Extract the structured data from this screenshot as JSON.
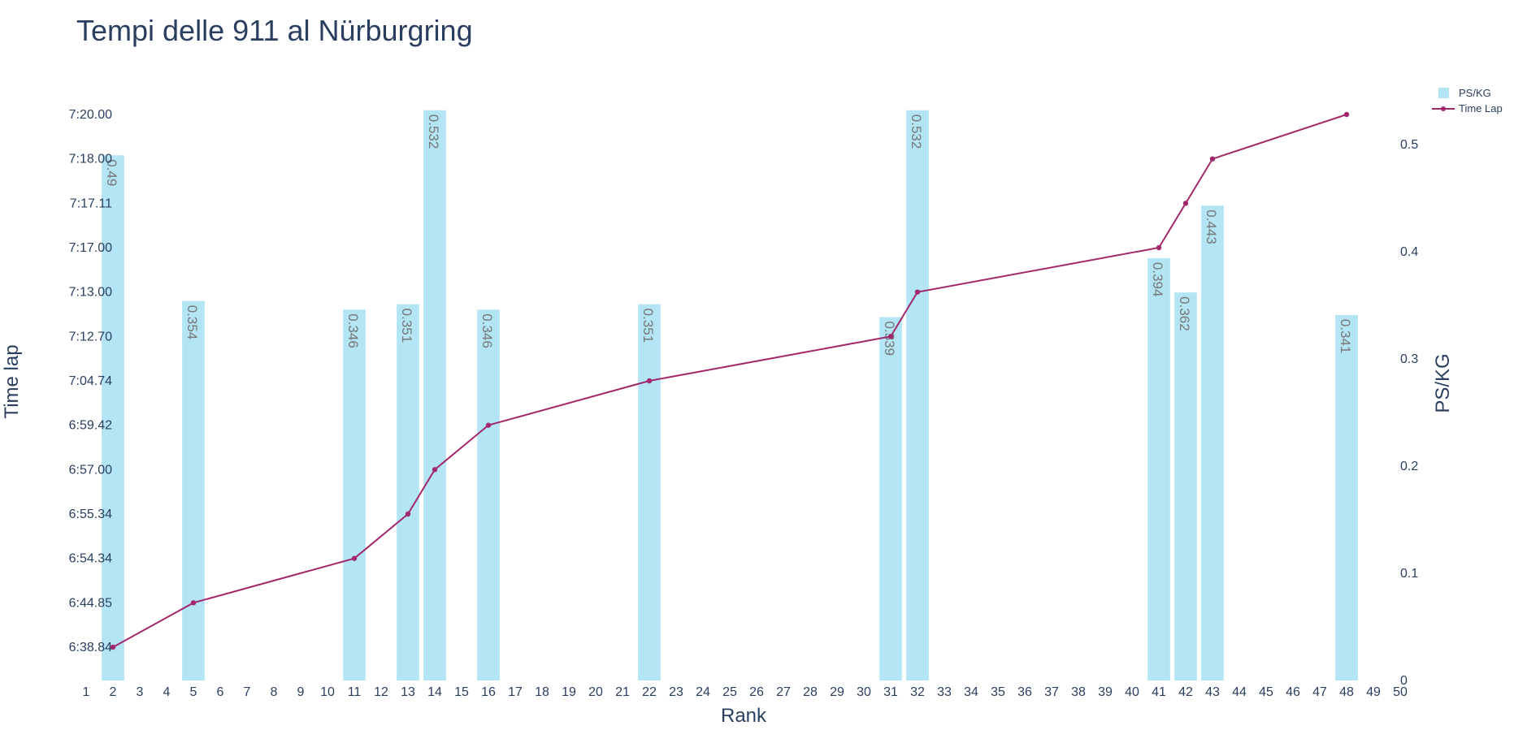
{
  "chart_data": {
    "type": "bar",
    "title": "Tempi delle 911 al Nürburgring",
    "xlabel": "Rank",
    "ylabel": "Time lap",
    "y2label": "PS/KG",
    "x_ticks": [
      1,
      2,
      3,
      4,
      5,
      6,
      7,
      8,
      9,
      10,
      11,
      12,
      13,
      14,
      15,
      16,
      17,
      18,
      19,
      20,
      21,
      22,
      23,
      24,
      25,
      26,
      27,
      28,
      29,
      30,
      31,
      32,
      33,
      34,
      35,
      36,
      37,
      38,
      39,
      40,
      41,
      42,
      43,
      44,
      45,
      46,
      47,
      48,
      49,
      50
    ],
    "xlim": [
      1,
      50
    ],
    "y_ticks": [
      "6:38.84",
      "6:44.85",
      "6:54.34",
      "6:55.34",
      "6:57.00",
      "6:59.42",
      "7:04.74",
      "7:12.70",
      "7:13.00",
      "7:17.00",
      "7:17.11",
      "7:18.00",
      "7:20.00"
    ],
    "y2_ticks": [
      0,
      0.1,
      0.2,
      0.3,
      0.4,
      0.5
    ],
    "y2lim": [
      0,
      0.5
    ],
    "series": [
      {
        "name": "PS/KG",
        "kind": "bar",
        "color": "#b3e5f4",
        "x": [
          2,
          5,
          11,
          13,
          14,
          16,
          22,
          31,
          32,
          41,
          42,
          43,
          48
        ],
        "values": [
          0.49,
          0.354,
          0.346,
          0.351,
          0.532,
          0.346,
          0.351,
          0.339,
          0.532,
          0.394,
          0.362,
          0.443,
          0.341
        ],
        "labels": [
          "0.49",
          "0.354",
          "0.346",
          "0.351",
          "0.532",
          "0.346",
          "0.351",
          "0.339",
          "0.532",
          "0.394",
          "0.362",
          "0.443",
          "0.341"
        ]
      },
      {
        "name": "Time Lap",
        "kind": "line",
        "color": "#a3286b",
        "x": [
          2,
          5,
          11,
          13,
          14,
          16,
          22,
          31,
          32,
          41,
          42,
          43,
          48
        ],
        "values": [
          "6:38.84",
          "6:44.85",
          "6:54.34",
          "6:55.34",
          "6:57.00",
          "6:59.42",
          "7:04.74",
          "7:12.70",
          "7:13.00",
          "7:17.00",
          "7:17.11",
          "7:18.00",
          "7:20.00"
        ]
      }
    ],
    "legend_position": "top-right"
  }
}
